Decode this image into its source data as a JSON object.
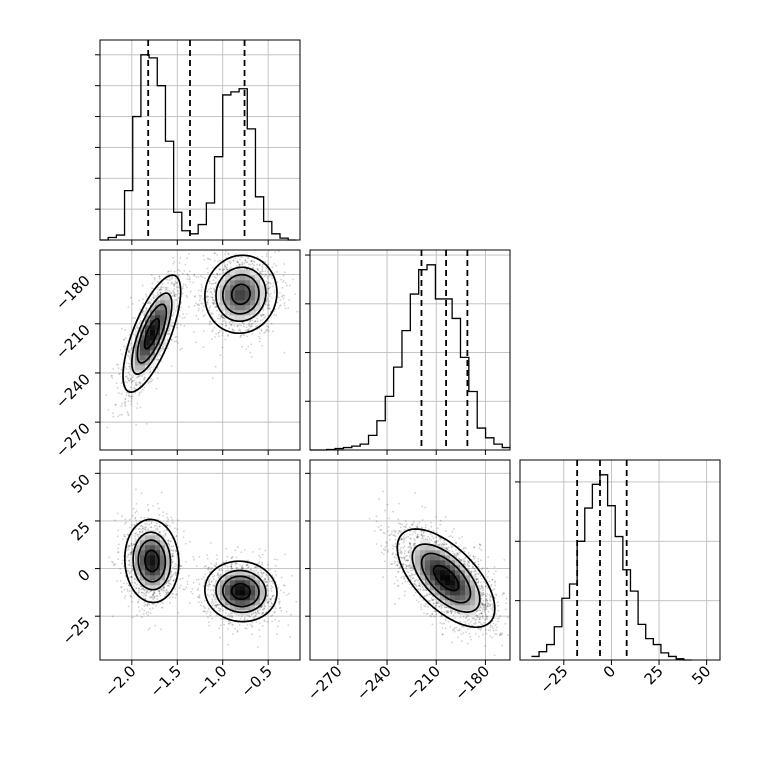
{
  "chart_data": {
    "type": "corner",
    "grid": true,
    "parameters": [
      {
        "range": [
          -2.35,
          -0.15
        ],
        "ticks": [
          -2.0,
          -1.5,
          -1.0,
          -0.5
        ],
        "tick_labels": [
          "−2.0",
          "−1.5",
          "−1.0",
          "−0.5"
        ],
        "quantiles": [
          -1.82,
          -1.36,
          -0.76
        ],
        "histogram": {
          "bin_edges": [
            -2.35,
            -2.26,
            -2.17,
            -2.08,
            -1.99,
            -1.9,
            -1.81,
            -1.72,
            -1.63,
            -1.54,
            -1.45,
            -1.36,
            -1.27,
            -1.18,
            -1.09,
            -1.0,
            -0.91,
            -0.82,
            -0.73,
            -0.64,
            -0.55,
            -0.46,
            -0.37,
            -0.28,
            -0.19
          ],
          "counts": [
            0,
            4,
            8,
            80,
            200,
            300,
            295,
            250,
            160,
            45,
            15,
            10,
            25,
            60,
            135,
            235,
            240,
            245,
            180,
            70,
            30,
            10,
            3,
            0
          ]
        }
      },
      {
        "range": [
          -287,
          -165
        ],
        "ticks": [
          -270,
          -240,
          -210,
          -180
        ],
        "tick_labels": [
          "−270",
          "−240",
          "−210",
          "−180"
        ],
        "quantiles": [
          -219,
          -204,
          -191
        ],
        "histogram": {
          "bin_edges": [
            -287,
            -281.9,
            -276.8,
            -271.7,
            -266.6,
            -261.5,
            -256.4,
            -251.3,
            -246.2,
            -241.1,
            -236,
            -230.9,
            -225.8,
            -220.7,
            -215.6,
            -210.5,
            -205.4,
            -200.3,
            -195.2,
            -190.1,
            -185,
            -179.9,
            -174.8,
            -169.7,
            -164.6
          ],
          "counts": [
            0,
            0,
            1,
            3,
            5,
            8,
            12,
            30,
            60,
            110,
            170,
            245,
            320,
            370,
            380,
            310,
            310,
            270,
            190,
            120,
            45,
            25,
            12,
            5
          ]
        }
      },
      {
        "range": [
          -48,
          57
        ],
        "ticks": [
          -25,
          0,
          25,
          50
        ],
        "tick_labels": [
          "−25",
          "0",
          "25",
          "50"
        ],
        "quantiles": [
          -18,
          -6,
          8
        ],
        "histogram": {
          "bin_edges": [
            -42,
            -38,
            -34,
            -30,
            -26,
            -22,
            -18,
            -14,
            -10,
            -6,
            -2,
            2,
            6,
            10,
            14,
            18,
            22,
            26,
            30,
            34,
            38,
            42
          ],
          "counts": [
            3,
            7,
            13,
            28,
            52,
            64,
            100,
            128,
            148,
            156,
            130,
            104,
            76,
            58,
            30,
            18,
            13,
            6,
            3,
            1,
            0
          ]
        }
      }
    ],
    "density_2d": [
      {
        "x_param": 0,
        "y_param": 1,
        "modes": [
          {
            "center": [
              -1.78,
              -216
            ],
            "sd": [
              0.16,
              18
            ],
            "corr": 0.72,
            "weight": 0.5
          },
          {
            "center": [
              -0.8,
              -192
            ],
            "sd": [
              0.2,
              12
            ],
            "corr": 0.05,
            "weight": 0.5
          }
        ]
      },
      {
        "x_param": 0,
        "y_param": 2,
        "modes": [
          {
            "center": [
              -1.78,
              4
            ],
            "sd": [
              0.15,
              11
            ],
            "corr": -0.05,
            "weight": 0.5
          },
          {
            "center": [
              -0.8,
              -12
            ],
            "sd": [
              0.2,
              8
            ],
            "corr": -0.05,
            "weight": 0.5
          }
        ]
      },
      {
        "x_param": 1,
        "y_param": 2,
        "modes": [
          {
            "center": [
              -204,
              -5
            ],
            "sd": [
              15,
              13
            ],
            "corr": -0.62,
            "weight": 1.0
          }
        ]
      }
    ]
  }
}
